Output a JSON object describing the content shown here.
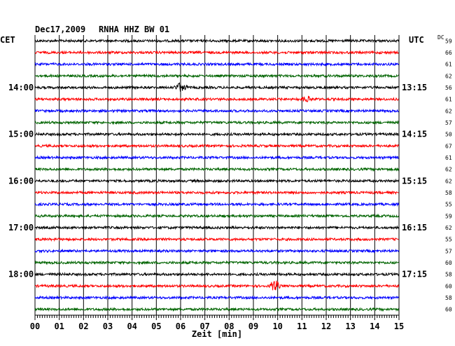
{
  "header": {
    "date": "Dec17,2009",
    "station": "RNHA HHZ BW 01",
    "left_tz": "CET",
    "right_tz": "UTC",
    "dc_label": "DC"
  },
  "chart_data": {
    "type": "line",
    "title": "Dec17,2009  RNHA HHZ BW 01",
    "xlabel": "Zeit [min]",
    "xlim": [
      0,
      15
    ],
    "x_ticks": [
      "00",
      "01",
      "02",
      "03",
      "04",
      "05",
      "06",
      "07",
      "08",
      "09",
      "10",
      "11",
      "12",
      "13",
      "14",
      "15"
    ],
    "grid": true,
    "trace_colors": [
      "#000000",
      "#ff0000",
      "#0000ff",
      "#006400"
    ],
    "left_hour_labels": [
      {
        "row": 4,
        "text": "14:00"
      },
      {
        "row": 8,
        "text": "15:00"
      },
      {
        "row": 12,
        "text": "16:00"
      },
      {
        "row": 16,
        "text": "17:00"
      },
      {
        "row": 20,
        "text": "18:00"
      }
    ],
    "right_hour_labels": [
      {
        "row": 4,
        "text": "13:15"
      },
      {
        "row": 8,
        "text": "14:15"
      },
      {
        "row": 12,
        "text": "15:15"
      },
      {
        "row": 16,
        "text": "16:15"
      },
      {
        "row": 20,
        "text": "17:15"
      }
    ],
    "dc_offsets": [
      "59",
      "66",
      "61",
      "62",
      "56",
      "61",
      "62",
      "57",
      "50",
      "67",
      "61",
      "62",
      "62",
      "58",
      "55",
      "59",
      "62",
      "55",
      "57",
      "60",
      "58",
      "60",
      "58",
      "60"
    ],
    "events": [
      {
        "row": 4,
        "minute": 6.0,
        "amplitude": 8
      },
      {
        "row": 5,
        "minute": 11.2,
        "amplitude": 5
      },
      {
        "row": 21,
        "minute": 9.9,
        "amplitude": 8
      }
    ]
  }
}
